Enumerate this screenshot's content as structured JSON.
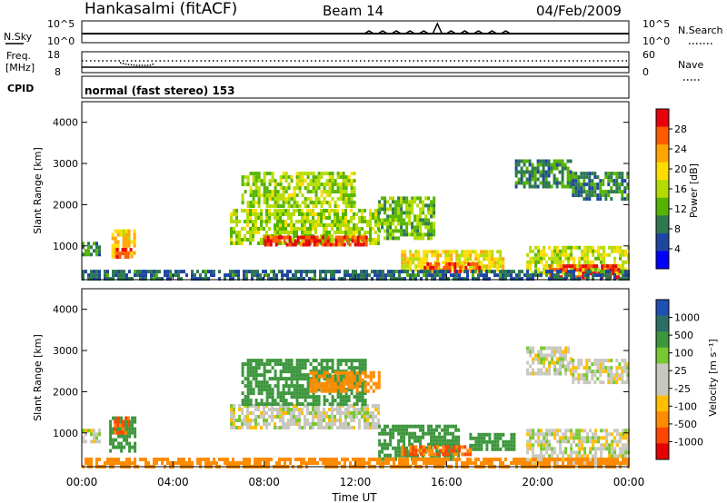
{
  "header": {
    "station": "Hankasalmi (fitACF)",
    "beam": "Beam 14",
    "date": "04/Feb/2009"
  },
  "noise_panel": {
    "left_label": "N.Sky",
    "right_label": "N.Search",
    "ticks_left": [
      "10^5",
      "10^0"
    ],
    "ticks_right": [
      "10^5",
      "10^0"
    ]
  },
  "freq_panel": {
    "left_label_1": "Freq.",
    "left_label_2": "[MHz]",
    "right_label": "Nave",
    "ticks_left": [
      "18",
      "8"
    ],
    "ticks_right": [
      "60",
      "0"
    ]
  },
  "cpid_panel": {
    "label": "CPID",
    "mode": "normal (fast stereo) 153"
  },
  "power_panel": {
    "ylabel": "Slant Range [km]",
    "colorbar_label": "Power [dB]",
    "colorbar_ticks": [
      "28",
      "24",
      "20",
      "16",
      "12",
      "8",
      "4"
    ],
    "colorbar_colors": [
      "#e8000b",
      "#ff5a00",
      "#ffa500",
      "#ffdc00",
      "#b4dc00",
      "#55b400",
      "#2d7850",
      "#1e46a0",
      "#0000ff"
    ]
  },
  "velocity_panel": {
    "ylabel": "Slant Range [km]",
    "colorbar_label": "Velocity [m s⁻¹]",
    "colorbar_ticks": [
      "1000",
      "500",
      "100",
      "25",
      "-25",
      "-100",
      "-500",
      "-1000"
    ],
    "colorbar_colors": [
      "#1e50b4",
      "#2d6e64",
      "#3c963c",
      "#78c832",
      "#c8c8c0",
      "#c8c8c0",
      "#ffbe00",
      "#ff8c00",
      "#ff4600",
      "#e60000"
    ]
  },
  "xaxis": {
    "label": "Time UT",
    "ticks": [
      "00:00",
      "04:00",
      "08:00",
      "12:00",
      "16:00",
      "20:00",
      "00:00"
    ]
  },
  "chart_data": [
    {
      "type": "heatmap",
      "title": "Power [dB]",
      "xlabel": "Time UT",
      "ylabel": "Slant Range [km]",
      "xlim": [
        "00:00",
        "24:00"
      ],
      "ylim": [
        180,
        4500
      ],
      "yticks": [
        1000,
        2000,
        3000,
        4000
      ],
      "regions": [
        {
          "t": [
            0.0,
            0.8
          ],
          "r": [
            800,
            1100
          ],
          "power": 8
        },
        {
          "t": [
            1.3,
            2.3
          ],
          "r": [
            700,
            1400
          ],
          "power": 20
        },
        {
          "t": [
            1.5,
            2.2
          ],
          "r": [
            700,
            950
          ],
          "power": 28
        },
        {
          "t": [
            6.5,
            13.0
          ],
          "r": [
            1100,
            1900
          ],
          "power": 14
        },
        {
          "t": [
            8.0,
            12.5
          ],
          "r": [
            1000,
            1250
          ],
          "power": 28
        },
        {
          "t": [
            7.0,
            12.0
          ],
          "r": [
            2000,
            2800
          ],
          "power": 14
        },
        {
          "t": [
            13.0,
            15.5
          ],
          "r": [
            1200,
            2200
          ],
          "power": 12
        },
        {
          "t": [
            14.0,
            18.5
          ],
          "r": [
            400,
            900
          ],
          "power": 18
        },
        {
          "t": [
            15.0,
            17.5
          ],
          "r": [
            350,
            600
          ],
          "power": 28
        },
        {
          "t": [
            19.5,
            24.0
          ],
          "r": [
            300,
            1000
          ],
          "power": 16
        },
        {
          "t": [
            20.5,
            23.5
          ],
          "r": [
            250,
            550
          ],
          "power": 28
        },
        {
          "t": [
            19.0,
            21.5
          ],
          "r": [
            2400,
            3100
          ],
          "power": 8
        },
        {
          "t": [
            21.5,
            24.0
          ],
          "r": [
            2100,
            2800
          ],
          "power": 8
        },
        {
          "t": [
            0.0,
            24.0
          ],
          "r": [
            180,
            420
          ],
          "power": 6
        }
      ]
    },
    {
      "type": "heatmap",
      "title": "Velocity [m s⁻¹]",
      "xlabel": "Time UT",
      "ylabel": "Slant Range [km]",
      "xlim": [
        "00:00",
        "24:00"
      ],
      "ylim": [
        180,
        4500
      ],
      "yticks": [
        1000,
        2000,
        3000,
        4000
      ],
      "regions": [
        {
          "t": [
            0.0,
            0.8
          ],
          "r": [
            800,
            1100
          ],
          "velocity": 0
        },
        {
          "t": [
            1.2,
            2.3
          ],
          "r": [
            600,
            1400
          ],
          "velocity": 100
        },
        {
          "t": [
            1.4,
            2.0
          ],
          "r": [
            1000,
            1400
          ],
          "velocity": -300
        },
        {
          "t": [
            6.5,
            13.0
          ],
          "r": [
            1100,
            1700
          ],
          "velocity": 0
        },
        {
          "t": [
            7.0,
            12.5
          ],
          "r": [
            1700,
            2800
          ],
          "velocity": 150
        },
        {
          "t": [
            10.0,
            13.0
          ],
          "r": [
            2000,
            2500
          ],
          "velocity": -200
        },
        {
          "t": [
            13.0,
            16.5
          ],
          "r": [
            400,
            1200
          ],
          "velocity": 150
        },
        {
          "t": [
            14.0,
            17.0
          ],
          "r": [
            450,
            700
          ],
          "velocity": -300
        },
        {
          "t": [
            17.0,
            19.0
          ],
          "r": [
            600,
            1000
          ],
          "velocity": 100
        },
        {
          "t": [
            19.5,
            24.0
          ],
          "r": [
            300,
            1100
          ],
          "velocity": 0
        },
        {
          "t": [
            19.5,
            21.5
          ],
          "r": [
            2400,
            3100
          ],
          "velocity": 0
        },
        {
          "t": [
            21.5,
            24.0
          ],
          "r": [
            2200,
            2800
          ],
          "velocity": 0
        },
        {
          "t": [
            0.0,
            24.0
          ],
          "r": [
            180,
            400
          ],
          "velocity": -200
        }
      ]
    }
  ]
}
